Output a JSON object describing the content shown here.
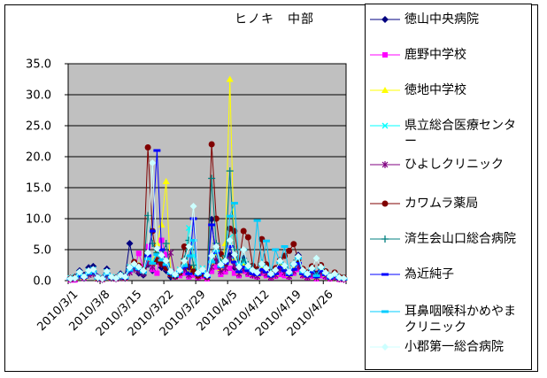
{
  "title": "ヒノキ　中部",
  "legend": {
    "position": "right"
  },
  "chart_data": {
    "type": "line",
    "title": "ヒノキ　中部",
    "n_points": 61,
    "x_start": "2010/3/1",
    "x_tick_labels": [
      "2010/3/1",
      "2010/3/8",
      "2010/3/15",
      "2010/3/22",
      "2010/3/29",
      "2010/4/5",
      "2010/4/12",
      "2010/4/19",
      "2010/4/26"
    ],
    "x_tick_indices": [
      0,
      7,
      14,
      21,
      28,
      35,
      42,
      49,
      56
    ],
    "ylim": [
      0,
      35
    ],
    "y_tick_labels": [
      "0.0",
      "5.0",
      "10.0",
      "15.0",
      "20.0",
      "25.0",
      "30.0",
      "35.0"
    ],
    "grid": "horizontal",
    "plot_bg": "#c0c0c0",
    "axis_color": "#000000",
    "series": [
      {
        "name": "徳山中央病院",
        "color": "#000080",
        "marker": "diamond",
        "values": [
          0.4,
          0.6,
          1.6,
          0.9,
          2.1,
          2.3,
          0.6,
          0.4,
          1.9,
          0.6,
          0.5,
          1.1,
          0.7,
          6.0,
          2.5,
          1.2,
          0.9,
          2.6,
          1.6,
          3.1,
          2.1,
          1.6,
          0.6,
          0.9,
          1.6,
          2.1,
          1.1,
          1.6,
          0.9,
          1.3,
          0.6,
          9.9,
          3.1,
          1.6,
          2.6,
          4.1,
          2.1,
          1.6,
          3.6,
          2.1,
          1.6,
          1.1,
          2.6,
          1.6,
          0.9,
          1.3,
          2.1,
          1.6,
          1.1,
          2.6,
          4.1,
          1.6,
          0.9,
          1.3,
          0.6,
          1.6,
          1.1,
          0.6,
          0.9,
          0.4,
          0.3
        ]
      },
      {
        "name": "鹿野中学校",
        "color": "#FF00FF",
        "marker": "square",
        "values": [
          0.1,
          0.1,
          0.8,
          0.4,
          1.0,
          1.2,
          0.3,
          0.2,
          0.9,
          0.4,
          0.3,
          0.6,
          0.4,
          1.5,
          2.0,
          4.4,
          2.2,
          5.5,
          1.8,
          1.2,
          6.5,
          4.2,
          1.0,
          0.6,
          0.8,
          1.2,
          0.6,
          0.9,
          0.5,
          0.7,
          0.3,
          1.5,
          2.2,
          1.0,
          1.4,
          2.0,
          1.2,
          0.8,
          1.5,
          1.0,
          0.8,
          0.6,
          1.2,
          0.8,
          0.5,
          0.7,
          1.0,
          0.8,
          0.6,
          1.2,
          1.8,
          0.8,
          0.5,
          0.7,
          0.3,
          0.8,
          0.6,
          0.3,
          0.5,
          0.2,
          0.2
        ]
      },
      {
        "name": "徳地中学校",
        "color": "#FFFF00",
        "marker": "triangle",
        "values": [
          0.3,
          0.5,
          1.0,
          0.6,
          1.3,
          1.5,
          0.4,
          0.3,
          1.2,
          0.5,
          0.4,
          0.8,
          0.5,
          2.0,
          3.0,
          2.5,
          1.8,
          3.5,
          2.8,
          6.0,
          9.0,
          16.0,
          1.2,
          0.8,
          1.5,
          2.5,
          1.3,
          2.0,
          1.0,
          1.5,
          0.8,
          3.0,
          4.5,
          2.0,
          6.0,
          32.5,
          3.5,
          1.5,
          2.5,
          1.8,
          1.2,
          1.0,
          2.0,
          1.5,
          0.8,
          1.2,
          2.5,
          1.8,
          1.0,
          2.0,
          3.0,
          1.2,
          0.8,
          1.5,
          0.6,
          1.8,
          1.0,
          0.5,
          0.8,
          0.4,
          0.3
        ]
      },
      {
        "name": "県立総合医療センター",
        "color": "#00FFFF",
        "marker": "x",
        "values": [
          0.4,
          0.6,
          1.2,
          0.7,
          1.5,
          1.8,
          0.5,
          0.4,
          1.4,
          0.6,
          0.5,
          0.9,
          0.6,
          2.2,
          2.8,
          2.0,
          1.5,
          3.8,
          3.0,
          4.5,
          3.5,
          2.8,
          1.4,
          1.0,
          1.8,
          3.0,
          8.5,
          4.0,
          1.5,
          2.0,
          1.0,
          3.5,
          5.0,
          2.5,
          3.0,
          7.0,
          4.0,
          2.0,
          3.0,
          2.2,
          1.5,
          1.2,
          2.5,
          1.8,
          1.0,
          1.5,
          3.0,
          2.2,
          1.2,
          2.5,
          3.5,
          1.5,
          1.0,
          1.8,
          0.8,
          2.0,
          1.2,
          0.6,
          1.0,
          0.5,
          0.4
        ]
      },
      {
        "name": "ひよしクリニック",
        "color": "#800080",
        "marker": "star",
        "values": [
          0.2,
          0.3,
          0.7,
          0.4,
          0.9,
          1.1,
          0.3,
          0.2,
          0.8,
          0.4,
          0.3,
          0.5,
          0.4,
          1.3,
          1.8,
          1.5,
          1.1,
          2.8,
          2.2,
          3.2,
          2.6,
          2.0,
          4.5,
          0.7,
          1.2,
          1.8,
          0.9,
          1.4,
          0.7,
          1.0,
          0.5,
          2.2,
          3.2,
          1.5,
          2.0,
          3.5,
          2.4,
          1.1,
          1.8,
          1.3,
          0.9,
          0.7,
          1.5,
          1.1,
          0.6,
          0.9,
          1.8,
          1.3,
          0.7,
          1.5,
          2.2,
          0.9,
          0.6,
          1.1,
          0.5,
          1.2,
          0.7,
          0.4,
          0.6,
          0.3,
          0.2
        ]
      },
      {
        "name": "カワムラ薬局",
        "color": "#800000",
        "marker": "circle",
        "values": [
          0.3,
          0.5,
          1.1,
          0.6,
          1.4,
          1.6,
          0.4,
          0.3,
          1.3,
          0.5,
          0.4,
          0.8,
          0.5,
          2.0,
          3.0,
          2.4,
          1.8,
          21.5,
          8.0,
          3.3,
          2.7,
          2.1,
          1.0,
          0.7,
          1.3,
          5.5,
          2.2,
          1.5,
          0.8,
          1.1,
          0.6,
          22.0,
          10.0,
          4.3,
          2.9,
          8.4,
          8.0,
          3.0,
          8.0,
          7.0,
          2.4,
          1.8,
          6.7,
          2.6,
          1.4,
          2.0,
          3.3,
          4.0,
          4.8,
          5.9,
          3.4,
          1.9,
          1.3,
          2.3,
          1.1,
          2.5,
          1.5,
          0.8,
          1.3,
          0.6,
          0.5
        ]
      },
      {
        "name": "済生会山口総合病院",
        "color": "#008080",
        "marker": "plus",
        "values": [
          0.3,
          0.4,
          0.9,
          0.5,
          1.2,
          1.4,
          0.4,
          0.3,
          1.1,
          0.5,
          0.4,
          0.7,
          0.5,
          1.8,
          2.4,
          2.0,
          1.5,
          10.5,
          6.0,
          4.5,
          3.8,
          6.0,
          1.2,
          0.8,
          1.5,
          3.5,
          6.5,
          2.5,
          1.2,
          1.6,
          0.8,
          16.5,
          6.0,
          3.0,
          4.0,
          17.7,
          5.0,
          2.5,
          3.5,
          2.6,
          1.8,
          1.4,
          2.8,
          2.0,
          1.1,
          1.6,
          3.0,
          2.2,
          1.3,
          2.8,
          3.8,
          1.6,
          1.1,
          2.0,
          0.9,
          2.2,
          1.3,
          0.7,
          1.1,
          0.5,
          0.4
        ]
      },
      {
        "name": "為近純子",
        "color": "#0000FF",
        "marker": "dash",
        "values": [
          0.2,
          0.4,
          0.8,
          0.5,
          1.1,
          1.3,
          0.4,
          0.2,
          1.0,
          0.4,
          0.3,
          0.6,
          0.4,
          1.6,
          2.2,
          1.8,
          1.4,
          4.0,
          8.0,
          21.0,
          5.0,
          2.5,
          1.1,
          0.7,
          1.4,
          2.2,
          1.1,
          10.0,
          0.9,
          1.2,
          0.6,
          9.0,
          4.5,
          2.2,
          2.8,
          5.5,
          3.0,
          1.4,
          2.2,
          1.6,
          1.1,
          0.9,
          1.8,
          1.4,
          0.7,
          1.1,
          2.2,
          1.6,
          0.9,
          1.8,
          2.8,
          1.1,
          0.7,
          1.4,
          0.6,
          1.5,
          0.9,
          0.4,
          0.7,
          0.3,
          0.2
        ]
      },
      {
        "name": "耳鼻咽喉科かめやまクリニック",
        "color": "#00CCFF",
        "marker": "dash",
        "values": [
          0.3,
          0.5,
          1.0,
          0.6,
          1.2,
          1.5,
          0.4,
          0.3,
          1.1,
          0.5,
          0.4,
          0.7,
          0.5,
          1.7,
          2.3,
          1.9,
          1.4,
          3.5,
          2.8,
          4.2,
          3.3,
          2.6,
          1.2,
          0.8,
          1.5,
          2.4,
          4.0,
          6.5,
          1.1,
          1.5,
          0.8,
          3.0,
          4.8,
          2.3,
          3.2,
          10.4,
          12.5,
          2.7,
          5.0,
          2.0,
          1.6,
          9.7,
          2.6,
          6.4,
          1.0,
          5.0,
          2.9,
          5.5,
          1.2,
          2.6,
          3.6,
          1.4,
          1.0,
          1.9,
          0.8,
          2.1,
          1.2,
          0.6,
          1.0,
          0.5,
          0.3
        ]
      },
      {
        "name": "小郡第一総合病院",
        "color": "#CCFFFF",
        "marker": "diamond",
        "values": [
          0.3,
          0.4,
          1.4,
          0.6,
          1.6,
          1.8,
          0.5,
          0.3,
          1.5,
          0.6,
          0.4,
          0.9,
          0.6,
          2.1,
          2.7,
          2.2,
          1.6,
          4.5,
          19.0,
          5.2,
          4.1,
          3.2,
          1.5,
          1.0,
          1.7,
          3.2,
          5.5,
          12.0,
          1.3,
          1.8,
          0.9,
          4.0,
          5.5,
          2.6,
          3.2,
          6.5,
          4.2,
          2.2,
          5.0,
          2.4,
          1.7,
          1.3,
          2.7,
          2.0,
          1.1,
          1.7,
          3.2,
          2.4,
          1.4,
          2.7,
          3.9,
          1.7,
          1.1,
          2.0,
          3.6,
          2.2,
          1.3,
          0.7,
          1.1,
          0.5,
          0.4
        ]
      }
    ]
  }
}
